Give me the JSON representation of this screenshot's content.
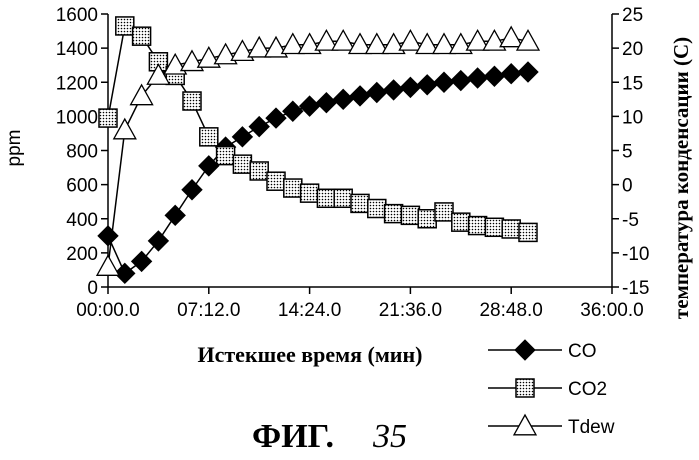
{
  "chart_data": {
    "type": "line",
    "title": "",
    "xlabel": "Истекшее время (мин)",
    "ylabel": "ppm",
    "ylabel_right": "температура конденсации (С)",
    "x_ticks": [
      "00:00.0",
      "07:12.0",
      "14:24.0",
      "21:36.0",
      "28:48.0",
      "36:00.0"
    ],
    "x_range_min": [
      0,
      36
    ],
    "y_left_ticks": [
      0,
      200,
      400,
      600,
      800,
      1000,
      1200,
      1400,
      1600
    ],
    "y_left_range": [
      0,
      1600
    ],
    "y_right_ticks": [
      -15,
      -10,
      -5,
      0,
      5,
      10,
      15,
      20,
      25
    ],
    "y_right_range": [
      -15,
      25
    ],
    "grid": false,
    "legend_position": "bottom-right",
    "series": [
      {
        "name": "CO",
        "axis": "left",
        "marker": "diamond",
        "x": [
          0.0,
          1.2,
          2.4,
          3.6,
          4.8,
          6.0,
          7.2,
          8.4,
          9.6,
          10.8,
          12.0,
          13.2,
          14.4,
          15.6,
          16.8,
          18.0,
          19.2,
          20.4,
          21.6,
          22.8,
          24.0,
          25.2,
          26.4,
          27.6,
          28.8,
          30.0
        ],
        "values": [
          300,
          80,
          150,
          270,
          420,
          570,
          710,
          820,
          880,
          940,
          990,
          1030,
          1060,
          1080,
          1100,
          1120,
          1140,
          1155,
          1170,
          1185,
          1200,
          1210,
          1225,
          1235,
          1250,
          1260
        ]
      },
      {
        "name": "CO2",
        "axis": "left",
        "marker": "square",
        "x": [
          0.0,
          1.2,
          2.4,
          3.6,
          4.8,
          6.0,
          7.2,
          8.4,
          9.6,
          10.8,
          12.0,
          13.2,
          14.4,
          15.6,
          16.8,
          18.0,
          19.2,
          20.4,
          21.6,
          22.8,
          24.0,
          25.2,
          26.4,
          27.6,
          28.8,
          30.0
        ],
        "values": [
          990,
          1530,
          1470,
          1320,
          1240,
          1090,
          880,
          770,
          720,
          680,
          620,
          580,
          550,
          520,
          520,
          490,
          460,
          430,
          420,
          400,
          440,
          380,
          360,
          350,
          340,
          320
        ]
      },
      {
        "name": "Tdew",
        "axis": "right",
        "marker": "triangle",
        "x": [
          0.0,
          1.2,
          2.4,
          3.6,
          4.8,
          6.0,
          7.2,
          8.4,
          9.6,
          10.8,
          12.0,
          13.2,
          14.4,
          15.6,
          16.8,
          18.0,
          19.2,
          20.4,
          21.6,
          22.8,
          24.0,
          25.2,
          26.4,
          27.6,
          28.8,
          30.0
        ],
        "values": [
          -12,
          8,
          13,
          16,
          17.5,
          18,
          18.5,
          19,
          19.5,
          20,
          20,
          20.5,
          20.5,
          21,
          21,
          20.5,
          20.5,
          20.5,
          21,
          20.5,
          20.5,
          20.5,
          21,
          21,
          21.5,
          21
        ]
      }
    ]
  },
  "caption": {
    "prefix": "ФИГ.",
    "number": "35"
  }
}
